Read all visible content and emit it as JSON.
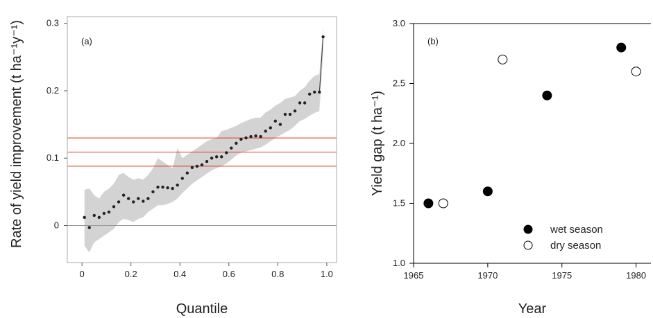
{
  "chart_data": [
    {
      "type": "scatter",
      "panel_label": "(a)",
      "xlabel": "Quantile",
      "ylabel": "Rate of yield improvement (t ha⁻¹y⁻¹)",
      "xlim": [
        -0.06,
        1.04
      ],
      "ylim": [
        -0.055,
        0.31
      ],
      "x_ticks": [
        0,
        0.2,
        0.4,
        0.6,
        0.8,
        1.0
      ],
      "x_tick_labels": [
        "0",
        "0.2",
        "0.4",
        "0.6",
        "0.8",
        "1.0"
      ],
      "y_ticks": [
        0,
        0.1,
        0.2,
        0.3
      ],
      "y_tick_labels": [
        "0",
        "0.1",
        "0.2",
        "0.3"
      ],
      "grid": false,
      "point_color": "#222222",
      "band_color": "#d3d3d3",
      "hline_color": "#e8301c",
      "zero_line_color": "#999999",
      "hlines": [
        0.13,
        0.109,
        0.088
      ],
      "zero_line": 0,
      "x": [
        0.01,
        0.03,
        0.05,
        0.07,
        0.09,
        0.11,
        0.13,
        0.15,
        0.17,
        0.19,
        0.21,
        0.23,
        0.25,
        0.27,
        0.29,
        0.31,
        0.33,
        0.35,
        0.37,
        0.39,
        0.41,
        0.43,
        0.45,
        0.47,
        0.49,
        0.51,
        0.53,
        0.55,
        0.57,
        0.59,
        0.61,
        0.63,
        0.65,
        0.67,
        0.69,
        0.71,
        0.73,
        0.75,
        0.77,
        0.79,
        0.81,
        0.83,
        0.85,
        0.87,
        0.89,
        0.91,
        0.93,
        0.95,
        0.97
      ],
      "y": [
        0.012,
        -0.003,
        0.015,
        0.012,
        0.018,
        0.02,
        0.028,
        0.035,
        0.045,
        0.04,
        0.035,
        0.04,
        0.036,
        0.04,
        0.05,
        0.057,
        0.057,
        0.056,
        0.055,
        0.06,
        0.07,
        0.078,
        0.086,
        0.088,
        0.09,
        0.095,
        0.1,
        0.102,
        0.102,
        0.108,
        0.115,
        0.122,
        0.128,
        0.13,
        0.132,
        0.133,
        0.132,
        0.14,
        0.145,
        0.155,
        0.15,
        0.165,
        0.165,
        0.17,
        0.182,
        0.182,
        0.195,
        0.198,
        0.198
      ],
      "upper": [
        0.053,
        0.055,
        0.045,
        0.04,
        0.05,
        0.055,
        0.062,
        0.075,
        0.078,
        0.072,
        0.068,
        0.07,
        0.068,
        0.075,
        0.085,
        0.1,
        0.095,
        0.09,
        0.085,
        0.115,
        0.1,
        0.105,
        0.11,
        0.115,
        0.12,
        0.125,
        0.128,
        0.13,
        0.14,
        0.142,
        0.145,
        0.148,
        0.152,
        0.155,
        0.158,
        0.16,
        0.16,
        0.168,
        0.172,
        0.178,
        0.182,
        0.188,
        0.19,
        0.192,
        0.2,
        0.205,
        0.215,
        0.222,
        0.225
      ],
      "lower": [
        -0.03,
        -0.04,
        -0.025,
        -0.02,
        -0.015,
        -0.01,
        -0.005,
        0.005,
        0.01,
        0.008,
        0.005,
        0.01,
        0.012,
        0.02,
        0.025,
        0.03,
        0.03,
        0.032,
        0.035,
        0.04,
        0.048,
        0.055,
        0.062,
        0.067,
        0.072,
        0.077,
        0.082,
        0.085,
        0.088,
        0.092,
        0.098,
        0.104,
        0.108,
        0.11,
        0.112,
        0.114,
        0.116,
        0.12,
        0.125,
        0.13,
        0.134,
        0.138,
        0.142,
        0.148,
        0.155,
        0.158,
        0.163,
        0.167,
        0.17
      ],
      "tail": {
        "x": [
          0.97,
          0.985
        ],
        "y": [
          0.198,
          0.28
        ],
        "upper": [
          0.225,
          0.295
        ],
        "lower": [
          0.17,
          0.255
        ]
      }
    },
    {
      "type": "scatter",
      "panel_label": "(b)",
      "xlabel": "Year",
      "ylabel": "Yield gap (t ha⁻¹)",
      "xlim": [
        1965,
        1981
      ],
      "ylim": [
        1.0,
        3.0
      ],
      "x_ticks": [
        1965,
        1970,
        1975,
        1980
      ],
      "x_tick_labels": [
        "1965",
        "1970",
        "1975",
        "1980"
      ],
      "y_ticks": [
        1.0,
        1.5,
        2.0,
        2.5,
        3.0
      ],
      "y_tick_labels": [
        "1.0",
        "1.5",
        "2.0",
        "2.5",
        "3.0"
      ],
      "grid": false,
      "legend": "bottom-right",
      "series": [
        {
          "name": "wet season",
          "marker": "filled-circle",
          "x": [
            1966,
            1970,
            1974,
            1979
          ],
          "y": [
            1.5,
            1.6,
            2.4,
            2.8
          ]
        },
        {
          "name": "dry season",
          "marker": "open-circle",
          "x": [
            1967,
            1971,
            1980
          ],
          "y": [
            1.5,
            2.7,
            2.6
          ]
        }
      ]
    }
  ]
}
